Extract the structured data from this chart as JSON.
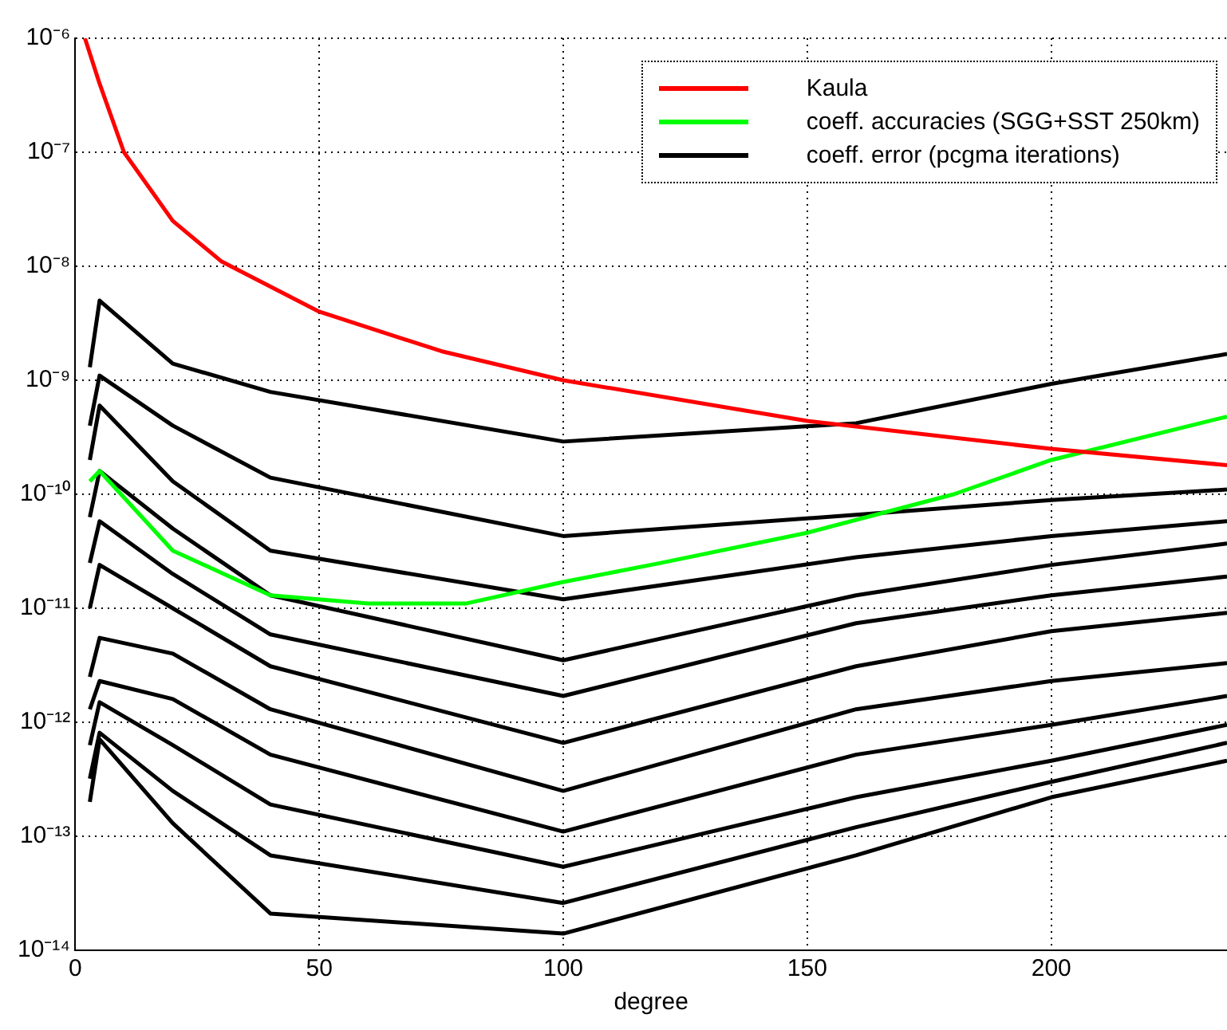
{
  "chart_data": {
    "type": "line",
    "xlabel": "degree",
    "log": "y",
    "grid": true,
    "legend": "top right",
    "marker": "none",
    "line_style": "solid",
    "xlim": [
      0,
      236
    ],
    "xticks": [
      0,
      50,
      100,
      150,
      200
    ],
    "ylim": [
      1e-14,
      1e-06
    ],
    "yticks": [
      {
        "value": 1e-06,
        "label": "10⁻⁶"
      },
      {
        "value": 1e-07,
        "label": "10⁻⁷"
      },
      {
        "value": 1e-08,
        "label": "10⁻⁸"
      },
      {
        "value": 1e-09,
        "label": "10⁻⁹"
      },
      {
        "value": 1e-10,
        "label": "10⁻¹⁰"
      },
      {
        "value": 1e-11,
        "label": "10⁻¹¹"
      },
      {
        "value": 1e-12,
        "label": "10⁻¹²"
      },
      {
        "value": 1e-13,
        "label": "10⁻¹³"
      },
      {
        "value": 1e-14,
        "label": "10⁻¹⁴"
      }
    ],
    "series": [
      {
        "name": "Kaula",
        "color": "#ff0000",
        "x": [
          2,
          5,
          10,
          20,
          30,
          50,
          75,
          100,
          150,
          200,
          236
        ],
        "values": [
          1e-06,
          4e-07,
          1e-07,
          2.5e-08,
          1.1e-08,
          4e-09,
          1.8e-09,
          1e-09,
          4.4e-10,
          2.5e-10,
          1.8e-10
        ]
      },
      {
        "name": "coeff. accuracies (SGG+SST 250km)",
        "color": "#00ff00",
        "x": [
          3,
          5,
          20,
          40,
          60,
          80,
          100,
          120,
          150,
          180,
          200,
          236
        ],
        "values": [
          1.3e-10,
          1.6e-10,
          3.2e-11,
          1.3e-11,
          1.1e-11,
          1.1e-11,
          1.7e-11,
          2.5e-11,
          4.6e-11,
          1e-10,
          2e-10,
          4.8e-10
        ]
      },
      {
        "name": "coeff. error (pcgma iterations)",
        "color": "#000000",
        "x": [
          3,
          5,
          20,
          40,
          100,
          160,
          200,
          236
        ],
        "values": [
          1.3e-09,
          5e-09,
          1.4e-09,
          7.9e-10,
          2.9e-10,
          4.2e-10,
          9.3e-10,
          1.7e-09
        ]
      },
      {
        "color": "#000000",
        "x": [
          3,
          5,
          20,
          40,
          100,
          160,
          200,
          236
        ],
        "values": [
          4e-10,
          1.1e-09,
          4e-10,
          1.4e-10,
          4.3e-11,
          6.6e-11,
          8.9e-11,
          1.1e-10
        ]
      },
      {
        "color": "#000000",
        "x": [
          3,
          5,
          20,
          40,
          100,
          160,
          200,
          236
        ],
        "values": [
          2e-10,
          6e-10,
          1.3e-10,
          3.2e-11,
          1.2e-11,
          2.8e-11,
          4.3e-11,
          5.8e-11
        ]
      },
      {
        "color": "#000000",
        "x": [
          3,
          5,
          20,
          40,
          100,
          160,
          200,
          236
        ],
        "values": [
          6.3e-11,
          1.6e-10,
          5e-11,
          1.3e-11,
          3.5e-12,
          1.3e-11,
          2.4e-11,
          3.7e-11
        ]
      },
      {
        "color": "#000000",
        "x": [
          3,
          5,
          20,
          40,
          100,
          160,
          200,
          236
        ],
        "values": [
          2.5e-11,
          5.8e-11,
          2e-11,
          5.9e-12,
          1.7e-12,
          7.4e-12,
          1.3e-11,
          1.9e-11
        ]
      },
      {
        "color": "#000000",
        "x": [
          3,
          5,
          20,
          40,
          100,
          160,
          200,
          236
        ],
        "values": [
          1e-11,
          2.4e-11,
          1e-11,
          3.1e-12,
          6.6e-13,
          3.1e-12,
          6.3e-12,
          9.1e-12
        ]
      },
      {
        "color": "#000000",
        "x": [
          3,
          5,
          20,
          40,
          100,
          160,
          200,
          236
        ],
        "values": [
          2.5e-12,
          5.5e-12,
          4e-12,
          1.3e-12,
          2.5e-13,
          1.3e-12,
          2.3e-12,
          3.3e-12
        ]
      },
      {
        "color": "#000000",
        "x": [
          3,
          5,
          20,
          40,
          100,
          160,
          200,
          236
        ],
        "values": [
          1.3e-12,
          2.3e-12,
          1.6e-12,
          5.2e-13,
          1.1e-13,
          5.2e-13,
          9.5e-13,
          1.7e-12
        ]
      },
      {
        "color": "#000000",
        "x": [
          3,
          5,
          20,
          40,
          100,
          160,
          200,
          236
        ],
        "values": [
          6.3e-13,
          1.5e-12,
          6.3e-13,
          1.9e-13,
          5.4e-14,
          2.2e-13,
          4.6e-13,
          9.5e-13
        ]
      },
      {
        "color": "#000000",
        "x": [
          3,
          5,
          20,
          40,
          100,
          160,
          200,
          236
        ],
        "values": [
          3.2e-13,
          8.1e-13,
          2.5e-13,
          6.8e-14,
          2.6e-14,
          1.2e-13,
          3e-13,
          6.6e-13
        ]
      },
      {
        "color": "#000000",
        "x": [
          3,
          5,
          20,
          40,
          100,
          160,
          200,
          236
        ],
        "values": [
          2e-13,
          7.1e-13,
          1.3e-13,
          2.1e-14,
          1.4e-14,
          6.8e-14,
          2.2e-13,
          4.6e-13
        ]
      }
    ]
  }
}
